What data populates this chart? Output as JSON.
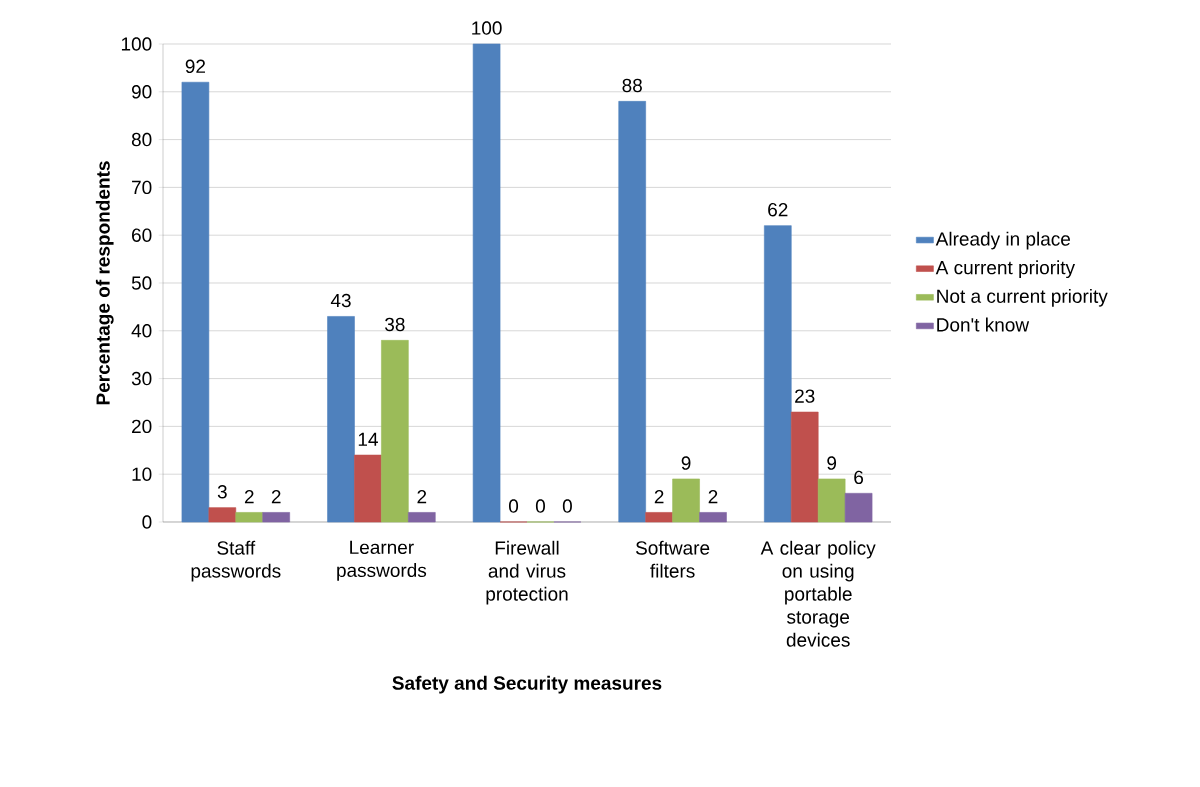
{
  "chart_data": {
    "type": "bar",
    "xlabel": "Safety and Security measures",
    "ylabel": "Percentage of respondents",
    "categories": [
      "Staff passwords",
      "Learner passwords",
      "Firewall and virus protection",
      "Software filters",
      "A clear policy on using portable storage devices"
    ],
    "series": [
      {
        "name": "Already in place",
        "color": "#4f81bd",
        "values": [
          92,
          43,
          100,
          88,
          62
        ]
      },
      {
        "name": "A current priority",
        "color": "#c0504d",
        "values": [
          3,
          14,
          0,
          2,
          23
        ]
      },
      {
        "name": "Not a current priority",
        "color": "#9bbb59",
        "values": [
          2,
          38,
          0,
          9,
          9
        ]
      },
      {
        "name": "Don't know",
        "color": "#8064a2",
        "values": [
          2,
          2,
          0,
          2,
          6
        ]
      }
    ],
    "ylim": [
      0,
      100
    ],
    "yticks": [
      0,
      10,
      20,
      30,
      40,
      50,
      60,
      70,
      80,
      90,
      100
    ],
    "grid": "y",
    "legend": "right",
    "data_labels": true
  }
}
